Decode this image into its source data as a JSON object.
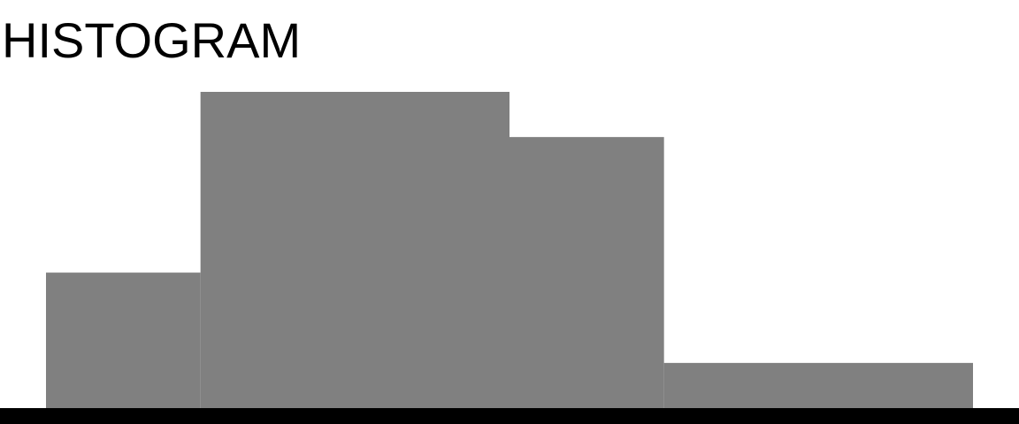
{
  "chart_data": {
    "type": "bar",
    "title": "HISTOGRAM",
    "bins": [
      {
        "start": 0,
        "end": 1,
        "value": 3
      },
      {
        "start": 1,
        "end": 3,
        "value": 7
      },
      {
        "start": 3,
        "end": 4,
        "value": 6
      },
      {
        "start": 4,
        "end": 6,
        "value": 1
      }
    ],
    "xlim": [
      0,
      6
    ],
    "ylim": [
      0,
      7
    ],
    "grid": false,
    "legend": "none",
    "colors": {
      "bar": "#808080",
      "baseline": "#000000"
    }
  }
}
